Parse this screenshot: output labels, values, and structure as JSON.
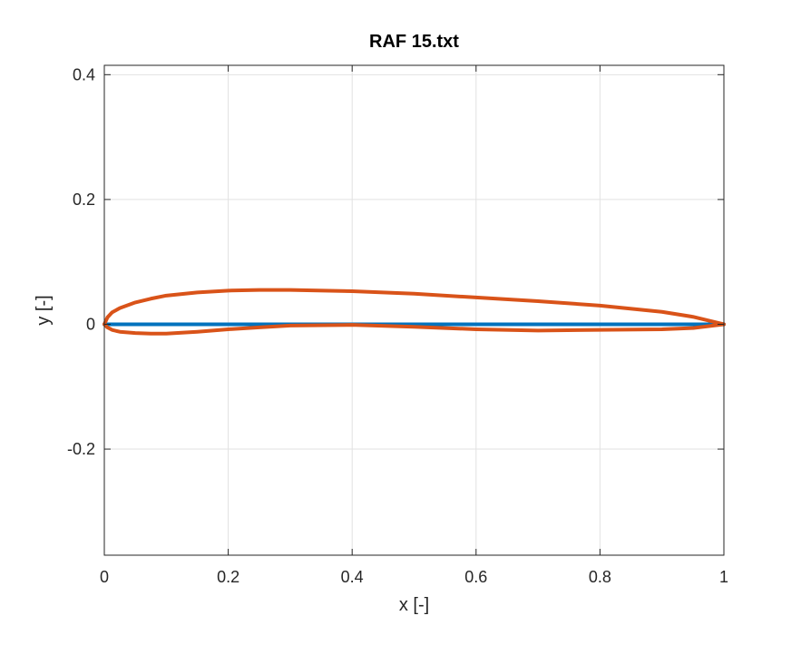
{
  "chart_data": {
    "type": "line",
    "title": "RAF 15.txt",
    "xlabel": "x [-]",
    "ylabel": "y [-]",
    "xlim": [
      0,
      1
    ],
    "ylim": [
      -0.37,
      0.415
    ],
    "grid": true,
    "x_ticks": [
      0,
      0.2,
      0.4,
      0.6,
      0.8,
      1
    ],
    "x_tick_labels": [
      "0",
      "0.2",
      "0.4",
      "0.6",
      "0.8",
      "1"
    ],
    "y_ticks": [
      -0.2,
      0,
      0.2,
      0.4
    ],
    "y_tick_labels": [
      "-0.2",
      "0",
      "0.2",
      "0.4"
    ],
    "series": [
      {
        "color": "#0072BD",
        "x": [
          0,
          0.2,
          0.4,
          0.6,
          0.8,
          1
        ],
        "y": [
          0,
          0,
          0,
          0,
          0,
          0
        ]
      },
      {
        "color": "#D95319",
        "x": [
          1,
          0.95,
          0.9,
          0.8,
          0.7,
          0.6,
          0.5,
          0.4,
          0.3,
          0.25,
          0.2,
          0.15,
          0.1,
          0.075,
          0.05,
          0.025,
          0.0125,
          0.005,
          0,
          0.005,
          0.0125,
          0.025,
          0.05,
          0.075,
          0.1,
          0.15,
          0.2,
          0.25,
          0.3,
          0.4,
          0.5,
          0.6,
          0.7,
          0.8,
          0.9,
          0.95,
          1
        ],
        "y": [
          0,
          0.012,
          0.02,
          0.03,
          0.037,
          0.043,
          0.049,
          0.053,
          0.055,
          0.055,
          0.054,
          0.051,
          0.046,
          0.041,
          0.035,
          0.026,
          0.019,
          0.011,
          0,
          -0.005,
          -0.009,
          -0.012,
          -0.014,
          -0.015,
          -0.015,
          -0.012,
          -0.008,
          -0.005,
          -0.002,
          -0.001,
          -0.004,
          -0.008,
          -0.01,
          -0.009,
          -0.008,
          -0.006,
          0
        ]
      }
    ]
  }
}
